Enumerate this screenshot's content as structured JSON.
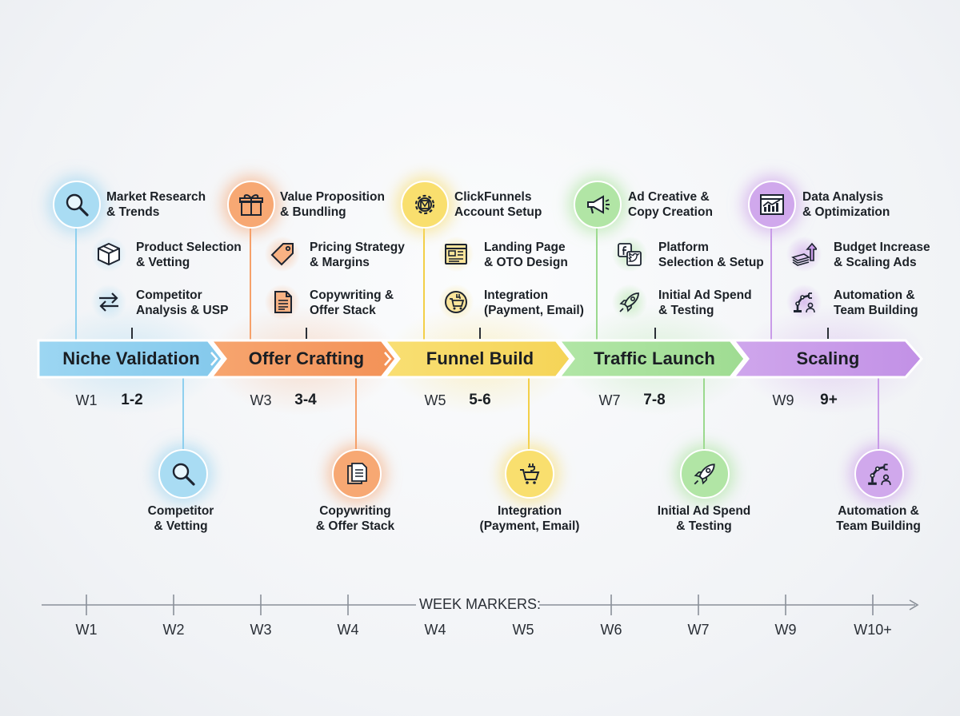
{
  "phases": [
    {
      "name": "Niche Validation",
      "color": "#8fd0ef",
      "glow": "#bfe6f8",
      "week_start": "W1",
      "week_range": "1-2",
      "top": {
        "line1": "Market Research",
        "line2": "& Trends",
        "icon": "magnifier-icon"
      },
      "items": [
        {
          "line1": "Product Selection",
          "line2": "& Vetting",
          "icon": "box-icon"
        },
        {
          "line1": "Competitor",
          "line2": "Analysis & USP",
          "icon": "swap-arrows-icon"
        }
      ],
      "bottom": {
        "line1": "Competitor",
        "line2": "& Vetting",
        "icon": "magnifier-icon"
      }
    },
    {
      "name": "Offer Crafting",
      "color": "#f6a16a",
      "glow": "#fbd0b0",
      "week_start": "W3",
      "week_range": "3-4",
      "top": {
        "line1": "Value Proposition",
        "line2": "& Bundling",
        "icon": "gift-icon"
      },
      "items": [
        {
          "line1": "Pricing Strategy",
          "line2": "& Margins",
          "icon": "price-tag-icon"
        },
        {
          "line1": "Copywriting &",
          "line2": "Offer Stack",
          "icon": "document-icon"
        }
      ],
      "bottom": {
        "line1": "Copywriting",
        "line2": "& Offer Stack",
        "icon": "documents-icon"
      }
    },
    {
      "name": "Funnel Build",
      "color": "#f8dc6a",
      "glow": "#fbedaa",
      "week_start": "W5",
      "week_range": "5-6",
      "top": {
        "line1": "ClickFunnels",
        "line2": "Account Setup",
        "icon": "gear-icon"
      },
      "items": [
        {
          "line1": "Landing Page",
          "line2": "& OTO Design",
          "icon": "webpage-icon"
        },
        {
          "line1": "Integration",
          "line2": "(Payment, Email)",
          "icon": "cart-plug-icon"
        }
      ],
      "bottom": {
        "line1": "Integration",
        "line2": "(Payment, Email)",
        "icon": "cart-plug-icon"
      }
    },
    {
      "name": "Traffic Launch",
      "color": "#a6e29a",
      "glow": "#cff1c8",
      "week_start": "W7",
      "week_range": "7-8",
      "top": {
        "line1": "Ad Creative &",
        "line2": "Copy Creation",
        "icon": "megaphone-icon"
      },
      "items": [
        {
          "line1": "Platform",
          "line2": "Selection & Setup",
          "icon": "social-icons-icon"
        },
        {
          "line1": "Initial Ad Spend",
          "line2": "& Testing",
          "icon": "rocket-icon"
        }
      ],
      "bottom": {
        "line1": "Initial Ad Spend",
        "line2": "& Testing",
        "icon": "rocket-icon"
      }
    },
    {
      "name": "Scaling",
      "color": "#c99be8",
      "glow": "#e4cdf5",
      "week_start": "W9",
      "week_range": "9+",
      "top": {
        "line1": "Data Analysis",
        "line2": "& Optimization",
        "icon": "analytics-icon"
      },
      "items": [
        {
          "line1": "Budget Increase",
          "line2": "& Scaling Ads",
          "icon": "money-growth-icon"
        },
        {
          "line1": "Automation &",
          "line2": "Team Building",
          "icon": "robot-arm-icon"
        }
      ],
      "bottom": {
        "line1": "Automation &",
        "line2": "Team Building",
        "icon": "robot-arm-icon"
      }
    }
  ],
  "axis": {
    "title": "WEEK MARKERS:",
    "ticks": [
      "W1",
      "W2",
      "W3",
      "W4",
      "W4",
      "W5",
      "W6",
      "W7",
      "W9",
      "W10+"
    ]
  }
}
